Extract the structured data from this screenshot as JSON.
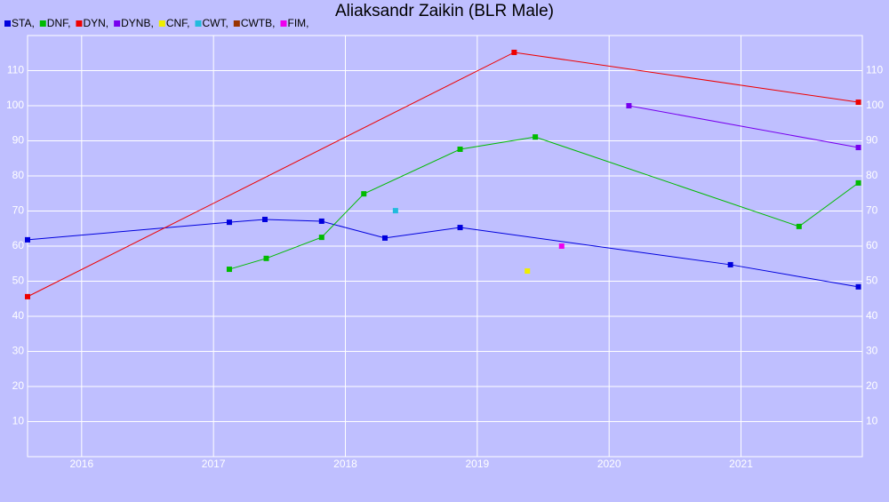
{
  "chart_data": {
    "type": "line",
    "title": "Aliaksandr Zaikin (BLR Male)",
    "xlim": [
      2015.59,
      2021.92
    ],
    "xticks": [
      2016,
      2017,
      2018,
      2019,
      2020,
      2021
    ],
    "ylim": [
      0,
      120
    ],
    "yticks": [
      10,
      20,
      30,
      40,
      50,
      60,
      70,
      80,
      90,
      100,
      110
    ],
    "grid": true,
    "legend": "top-left",
    "series": [
      {
        "name": "STA,",
        "color": "#0000dd",
        "x": [
          2015.59,
          2017.12,
          2017.39,
          2017.82,
          2018.3,
          2018.87,
          2020.92,
          2021.89
        ],
        "values": [
          61.8,
          66.8,
          67.6,
          67.1,
          62.3,
          65.3,
          54.7,
          48.4
        ]
      },
      {
        "name": "DNF,",
        "color": "#00bb00",
        "x": [
          2017.12,
          2017.4,
          2017.82,
          2018.14,
          2018.87,
          2019.44,
          2021.44,
          2021.89
        ],
        "values": [
          53.4,
          56.5,
          62.5,
          74.9,
          87.6,
          91.1,
          65.6,
          78.0
        ]
      },
      {
        "name": "DYN,",
        "color": "#ee0000",
        "x": [
          2015.59,
          2019.28,
          2021.89
        ],
        "values": [
          45.6,
          115.2,
          101.0
        ]
      },
      {
        "name": "DYNB,",
        "color": "#7700ee",
        "x": [
          2020.15,
          2021.89
        ],
        "values": [
          100.0,
          88.1
        ]
      },
      {
        "name": "CNF,",
        "color": "#eeee00",
        "x": [
          2019.38
        ],
        "values": [
          52.9
        ]
      },
      {
        "name": "CWT,",
        "color": "#22bbdd",
        "x": [
          2018.38
        ],
        "values": [
          70.1
        ]
      },
      {
        "name": "CWTB,",
        "color": "#993300",
        "x": [],
        "values": []
      },
      {
        "name": "FIM,",
        "color": "#ee00ee",
        "x": [
          2019.64
        ],
        "values": [
          60.0
        ]
      }
    ]
  }
}
